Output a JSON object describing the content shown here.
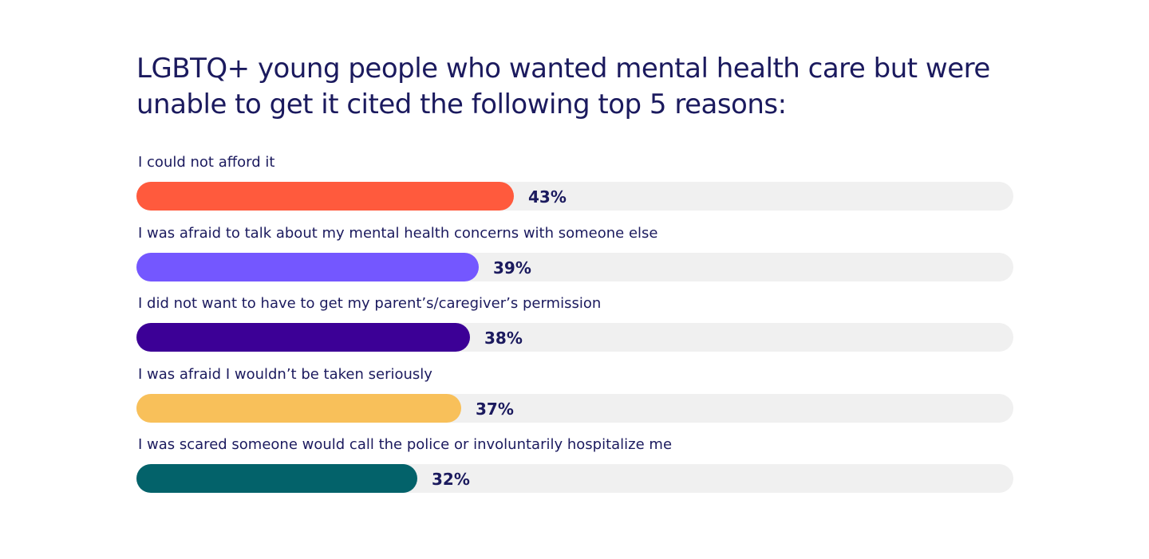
{
  "chart_data": {
    "type": "bar",
    "orientation": "horizontal",
    "title": "LGBTQ+ young people who wanted mental health care but were unable to get it cited the following top 5 reasons:",
    "categories": [
      "I could not afford it",
      "I was afraid to talk about my mental health concerns with someone else",
      "I did not want to have to get my parent’s/caregiver’s permission",
      "I was afraid I wouldn’t be taken seriously",
      "I was scared someone would call the police or involuntarily hospitalize me"
    ],
    "values": [
      43,
      39,
      38,
      37,
      32
    ],
    "value_labels": [
      "43%",
      "39%",
      "38%",
      "37%",
      "32%"
    ],
    "unit": "%",
    "xlim": [
      0,
      100
    ],
    "colors": [
      "#ff5a3d",
      "#7457ff",
      "#3c0096",
      "#f8c05a",
      "#03626a"
    ],
    "track_color": "#f0f0f0",
    "text_color": "#1b1a5e",
    "grid": false,
    "legend": "none"
  }
}
